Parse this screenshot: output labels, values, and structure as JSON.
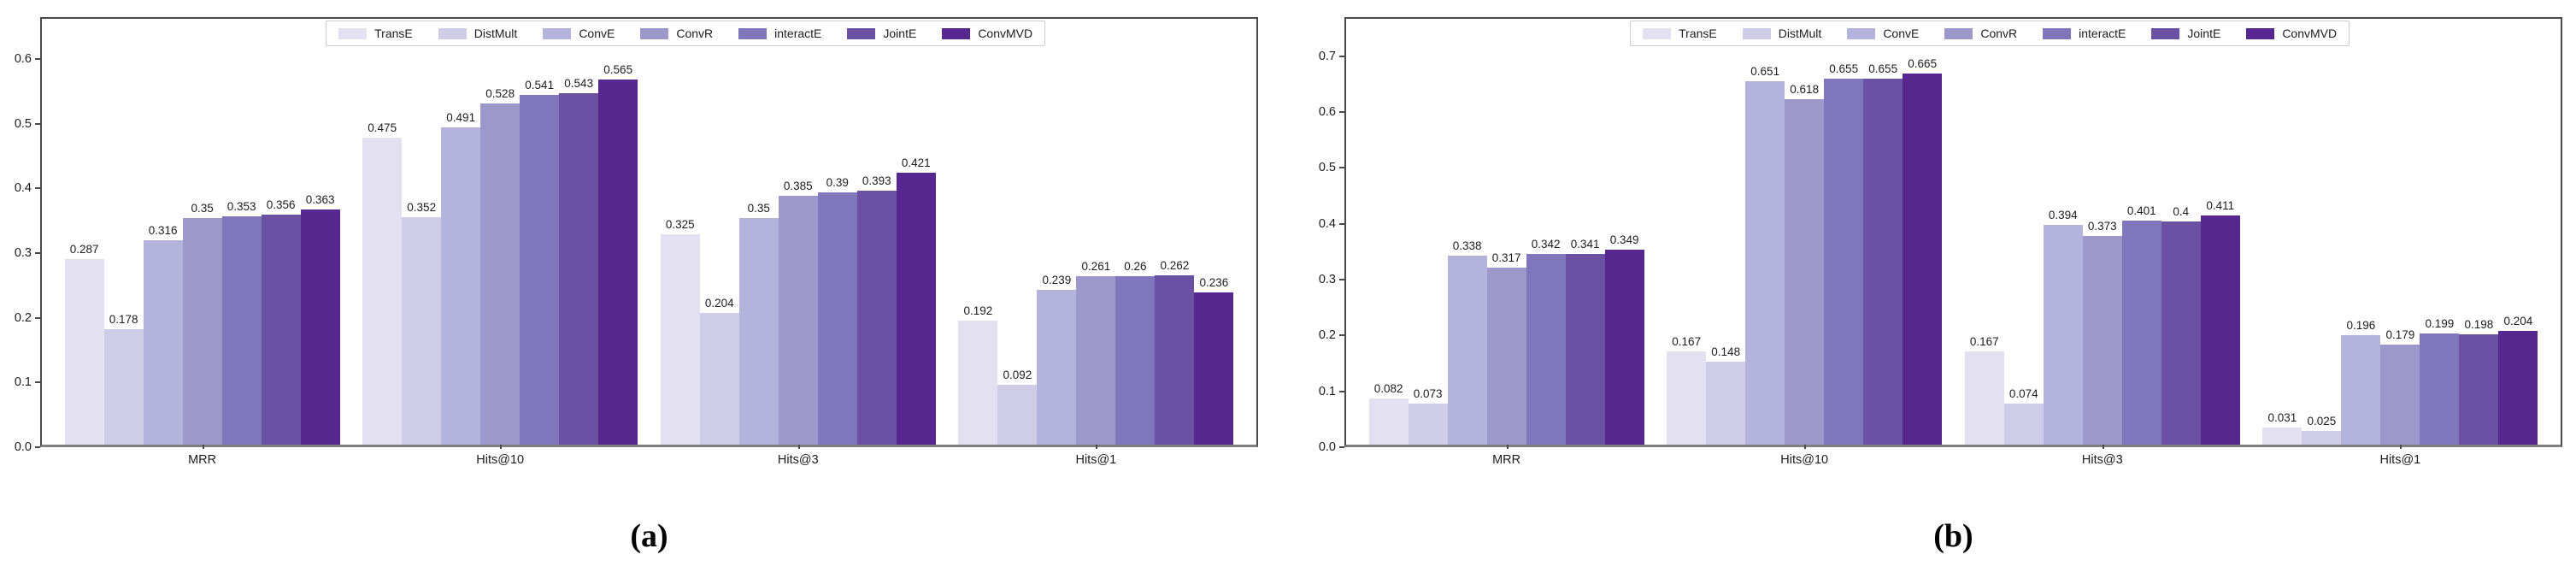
{
  "figure": {
    "background": "#ffffff",
    "series_names": [
      "TransE",
      "DistMult",
      "ConvE",
      "ConvR",
      "interactE",
      "JointE",
      "ConvMVD"
    ],
    "series_colors": [
      "#e3e1f1",
      "#cfcce7",
      "#b3b3db",
      "#9c98cb",
      "#8076bc",
      "#6a51a3",
      "#55278f"
    ],
    "axis_color": "#4a4a4a",
    "legend_border_color": "#cccccc"
  },
  "chart_data": [
    {
      "type": "bar",
      "caption": "(a)",
      "title": "",
      "xlabel": "",
      "ylabel": "",
      "grid": false,
      "legend_position": "top-center-inside",
      "categories": [
        "MRR",
        "Hits@10",
        "Hits@3",
        "Hits@1"
      ],
      "yticks": [
        0.0,
        0.1,
        0.2,
        0.3,
        0.4,
        0.5,
        0.6
      ],
      "ytick_labels": [
        "0.0",
        "0.1",
        "0.2",
        "0.3",
        "0.4",
        "0.5",
        "0.6"
      ],
      "ylim": [
        0,
        0.665
      ],
      "series": [
        {
          "name": "TransE",
          "values": [
            0.287,
            0.475,
            0.325,
            0.192
          ],
          "value_labels": [
            "0.287",
            "0.475",
            "0.325",
            "0.192"
          ]
        },
        {
          "name": "DistMult",
          "values": [
            0.178,
            0.352,
            0.204,
            0.092
          ],
          "value_labels": [
            "0.178",
            "0.352",
            "0.204",
            "0.092"
          ]
        },
        {
          "name": "ConvE",
          "values": [
            0.316,
            0.491,
            0.35,
            0.239
          ],
          "value_labels": [
            "0.316",
            "0.491",
            "0.35",
            "0.239"
          ]
        },
        {
          "name": "ConvR",
          "values": [
            0.35,
            0.528,
            0.385,
            0.261
          ],
          "value_labels": [
            "0.35",
            "0.528",
            "0.385",
            "0.261"
          ]
        },
        {
          "name": "interactE",
          "values": [
            0.353,
            0.541,
            0.39,
            0.26
          ],
          "value_labels": [
            "0.353",
            "0.541",
            "0.39",
            "0.26"
          ]
        },
        {
          "name": "JointE",
          "values": [
            0.356,
            0.543,
            0.393,
            0.262
          ],
          "value_labels": [
            "0.356",
            "0.543",
            "0.393",
            "0.262"
          ]
        },
        {
          "name": "ConvMVD",
          "values": [
            0.363,
            0.565,
            0.421,
            0.236
          ],
          "value_labels": [
            "0.363",
            "0.565",
            "0.421",
            "0.236"
          ]
        }
      ]
    },
    {
      "type": "bar",
      "caption": "(b)",
      "title": "",
      "xlabel": "",
      "ylabel": "",
      "grid": false,
      "legend_position": "top-center-inside",
      "categories": [
        "MRR",
        "Hits@10",
        "Hits@3",
        "Hits@1"
      ],
      "yticks": [
        0.0,
        0.1,
        0.2,
        0.3,
        0.4,
        0.5,
        0.6,
        0.7
      ],
      "ytick_labels": [
        "0.0",
        "0.1",
        "0.2",
        "0.3",
        "0.4",
        "0.5",
        "0.6",
        "0.7"
      ],
      "ylim": [
        0,
        0.77
      ],
      "series": [
        {
          "name": "TransE",
          "values": [
            0.082,
            0.167,
            0.167,
            0.031
          ],
          "value_labels": [
            "0.082",
            "0.167",
            "0.167",
            "0.031"
          ]
        },
        {
          "name": "DistMult",
          "values": [
            0.073,
            0.148,
            0.074,
            0.025
          ],
          "value_labels": [
            "0.073",
            "0.148",
            "0.074",
            "0.025"
          ]
        },
        {
          "name": "ConvE",
          "values": [
            0.338,
            0.651,
            0.394,
            0.196
          ],
          "value_labels": [
            "0.338",
            "0.651",
            "0.394",
            "0.196"
          ]
        },
        {
          "name": "ConvR",
          "values": [
            0.317,
            0.618,
            0.373,
            0.179
          ],
          "value_labels": [
            "0.317",
            "0.618",
            "0.373",
            "0.179"
          ]
        },
        {
          "name": "interactE",
          "values": [
            0.342,
            0.655,
            0.401,
            0.199
          ],
          "value_labels": [
            "0.342",
            "0.655",
            "0.401",
            "0.199"
          ]
        },
        {
          "name": "JointE",
          "values": [
            0.341,
            0.655,
            0.4,
            0.198
          ],
          "value_labels": [
            "0.341",
            "0.655",
            "0.4",
            "0.198"
          ]
        },
        {
          "name": "ConvMVD",
          "values": [
            0.349,
            0.665,
            0.411,
            0.204
          ],
          "value_labels": [
            "0.349",
            "0.665",
            "0.411",
            "0.204"
          ]
        }
      ]
    }
  ]
}
